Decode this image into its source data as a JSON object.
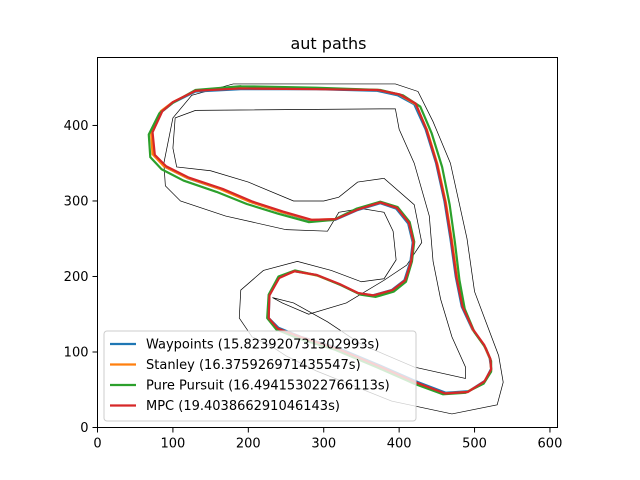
{
  "chart_data": {
    "type": "line",
    "title": "aut paths",
    "xlabel": "",
    "ylabel": "",
    "xlim": [
      0,
      610
    ],
    "ylim": [
      0,
      490
    ],
    "xticks": [
      0,
      100,
      200,
      300,
      400,
      500,
      600
    ],
    "yticks": [
      0,
      100,
      200,
      300,
      400
    ],
    "grid": false,
    "legend_position": "lower-left",
    "track": {
      "outer_boundary": [
        [
          180,
          455
        ],
        [
          310,
          455
        ],
        [
          395,
          455
        ],
        [
          425,
          445
        ],
        [
          445,
          405
        ],
        [
          468,
          350
        ],
        [
          490,
          250
        ],
        [
          500,
          180
        ],
        [
          515,
          140
        ],
        [
          532,
          95
        ],
        [
          538,
          60
        ],
        [
          530,
          30
        ],
        [
          470,
          18
        ],
        [
          390,
          35
        ],
        [
          290,
          75
        ],
        [
          250,
          95
        ],
        [
          230,
          108
        ],
        [
          205,
          120
        ],
        [
          188,
          145
        ],
        [
          190,
          182
        ],
        [
          220,
          208
        ],
        [
          265,
          220
        ],
        [
          310,
          208
        ],
        [
          350,
          193
        ],
        [
          380,
          197
        ],
        [
          396,
          222
        ],
        [
          392,
          260
        ],
        [
          380,
          285
        ],
        [
          350,
          290
        ],
        [
          320,
          285
        ],
        [
          305,
          260
        ],
        [
          250,
          262
        ],
        [
          170,
          280
        ],
        [
          110,
          300
        ],
        [
          90,
          320
        ],
        [
          88,
          350
        ],
        [
          100,
          410
        ],
        [
          125,
          440
        ],
        [
          180,
          455
        ]
      ],
      "inner_boundary": [
        [
          130,
          420
        ],
        [
          375,
          422
        ],
        [
          395,
          422
        ],
        [
          400,
          395
        ],
        [
          420,
          350
        ],
        [
          440,
          280
        ],
        [
          445,
          220
        ],
        [
          455,
          170
        ],
        [
          470,
          120
        ],
        [
          488,
          80
        ],
        [
          488,
          65
        ],
        [
          420,
          80
        ],
        [
          350,
          110
        ],
        [
          305,
          140
        ],
        [
          260,
          165
        ],
        [
          232,
          172
        ],
        [
          245,
          165
        ],
        [
          280,
          150
        ],
        [
          330,
          165
        ],
        [
          380,
          195
        ],
        [
          410,
          215
        ],
        [
          430,
          245
        ],
        [
          420,
          295
        ],
        [
          380,
          330
        ],
        [
          345,
          325
        ],
        [
          320,
          305
        ],
        [
          300,
          300
        ],
        [
          260,
          300
        ],
        [
          200,
          325
        ],
        [
          150,
          340
        ],
        [
          105,
          345
        ],
        [
          100,
          370
        ],
        [
          103,
          410
        ],
        [
          130,
          420
        ]
      ]
    },
    "series": [
      {
        "name": "Waypoints (15.823920731302993s)",
        "color": "#1f77b4",
        "x": [
          190,
          290,
          370,
          398,
          420,
          435,
          449,
          460,
          468,
          475,
          483,
          497,
          512,
          520,
          522,
          514,
          492,
          462,
          425,
          375,
          320,
          270,
          240,
          227,
          228,
          240,
          260,
          290,
          320,
          345,
          365,
          390,
          407,
          415,
          418,
          412,
          396,
          375,
          345,
          315,
          283,
          245,
          205,
          165,
          120,
          90,
          75,
          72,
          85,
          100,
          130,
          190
        ],
        "y": [
          448,
          448,
          446,
          440,
          428,
          395,
          350,
          300,
          250,
          200,
          160,
          130,
          110,
          92,
          78,
          62,
          48,
          46,
          60,
          82,
          105,
          120,
          132,
          145,
          175,
          198,
          207,
          202,
          190,
          178,
          175,
          182,
          195,
          220,
          245,
          270,
          290,
          297,
          288,
          275,
          274,
          285,
          298,
          315,
          330,
          345,
          360,
          390,
          418,
          430,
          445,
          448
        ]
      },
      {
        "name": "Stanley (16.375926971435547s)",
        "color": "#ff7f0e",
        "x": [
          190,
          290,
          372,
          400,
          422,
          437,
          451,
          462,
          470,
          477,
          485,
          498,
          513,
          521,
          522,
          513,
          490,
          460,
          423,
          373,
          318,
          268,
          238,
          226,
          228,
          241,
          262,
          292,
          322,
          347,
          367,
          392,
          408,
          416,
          419,
          413,
          397,
          375,
          345,
          315,
          282,
          242,
          202,
          162,
          118,
          88,
          73,
          71,
          84,
          100,
          130,
          190
        ],
        "y": [
          450,
          449,
          447,
          441,
          428,
          394,
          348,
          298,
          248,
          198,
          159,
          129,
          108,
          90,
          76,
          60,
          47,
          45,
          59,
          81,
          104,
          119,
          131,
          145,
          176,
          199,
          207,
          201,
          189,
          177,
          174,
          181,
          194,
          220,
          245,
          271,
          291,
          298,
          289,
          276,
          275,
          286,
          299,
          316,
          331,
          346,
          362,
          392,
          419,
          431,
          446,
          450
        ]
      },
      {
        "name": "Pure Pursuit (16.494153022766113s)",
        "color": "#2ca02c",
        "x": [
          190,
          290,
          375,
          405,
          428,
          443,
          457,
          467,
          474,
          480,
          487,
          500,
          515,
          522,
          522,
          512,
          488,
          458,
          420,
          370,
          315,
          266,
          237,
          225,
          227,
          240,
          262,
          293,
          324,
          349,
          369,
          393,
          409,
          417,
          420,
          414,
          398,
          375,
          344,
          313,
          280,
          240,
          198,
          158,
          114,
          85,
          70,
          68,
          82,
          100,
          130,
          190
        ],
        "y": [
          452,
          450,
          447,
          440,
          425,
          390,
          345,
          295,
          245,
          195,
          157,
          126,
          105,
          88,
          74,
          58,
          46,
          44,
          58,
          80,
          103,
          118,
          130,
          145,
          176,
          200,
          208,
          201,
          188,
          176,
          173,
          180,
          193,
          220,
          246,
          272,
          292,
          299,
          290,
          275,
          272,
          283,
          296,
          312,
          327,
          342,
          358,
          388,
          416,
          430,
          447,
          452
        ]
      },
      {
        "name": "MPC (19.403866291046143s)",
        "color": "#d62728",
        "x": [
          190,
          290,
          372,
          401,
          422,
          436,
          450,
          461,
          469,
          476,
          484,
          498,
          513,
          521,
          522,
          513,
          491,
          461,
          424,
          374,
          319,
          269,
          239,
          227,
          228,
          241,
          261,
          291,
          321,
          346,
          366,
          391,
          408,
          416,
          419,
          413,
          397,
          375,
          346,
          316,
          284,
          246,
          206,
          166,
          121,
          91,
          76,
          73,
          86,
          100,
          130,
          190
        ],
        "y": [
          449,
          448,
          447,
          441,
          429,
          395,
          349,
          299,
          249,
          199,
          160,
          130,
          109,
          91,
          77,
          61,
          47,
          45,
          59,
          81,
          104,
          120,
          131,
          145,
          175,
          198,
          207,
          202,
          190,
          178,
          175,
          182,
          195,
          220,
          246,
          271,
          291,
          298,
          289,
          276,
          275,
          286,
          299,
          316,
          331,
          346,
          361,
          391,
          419,
          431,
          446,
          449
        ]
      }
    ]
  }
}
